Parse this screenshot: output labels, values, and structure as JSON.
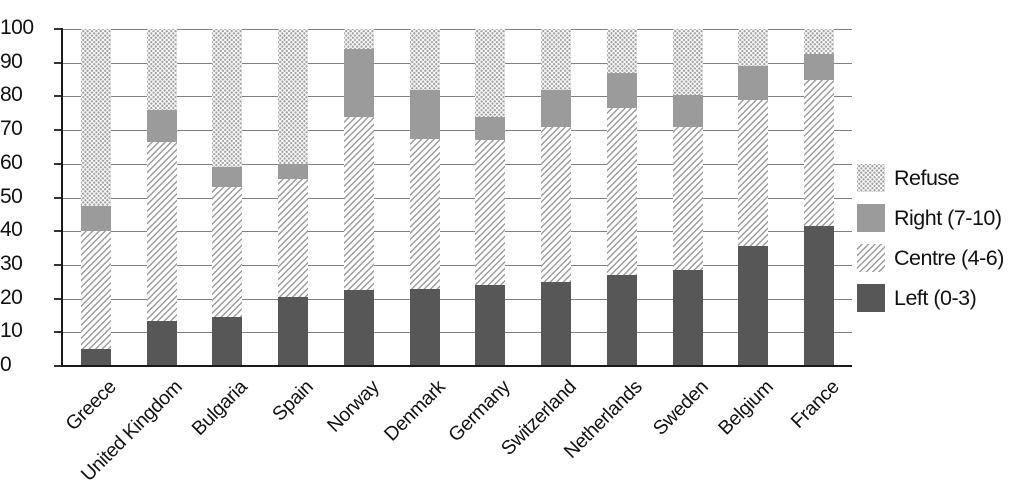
{
  "chart_data": {
    "type": "bar",
    "subtype": "stacked-100",
    "title": "",
    "xlabel": "",
    "ylabel": "",
    "ylim": [
      0,
      100
    ],
    "grid": true,
    "legend_position": "right",
    "yticks": [
      100,
      90,
      80,
      70,
      60,
      50,
      40,
      30,
      20,
      10,
      0
    ],
    "categories": [
      "Greece",
      "United Kingdom",
      "Bulgaria",
      "Spain",
      "Norway",
      "Denmark",
      "Germany",
      "Switzerland",
      "Netherlands",
      "Sweden",
      "Belgium",
      "France"
    ],
    "series": [
      {
        "name": "Left (0-3)",
        "pattern": "solid-dark",
        "values": [
          5,
          13.5,
          14.5,
          20.5,
          22.5,
          23,
          24,
          25,
          27,
          28.5,
          35.5,
          41.5
        ]
      },
      {
        "name": "Centre (4-6)",
        "pattern": "hatch",
        "values": [
          35,
          53,
          38.5,
          35,
          51.5,
          44.5,
          43,
          46,
          49.5,
          42.5,
          43.5,
          43.5
        ]
      },
      {
        "name": "Right (7-10)",
        "pattern": "solid-mid",
        "values": [
          7.5,
          9.5,
          6,
          4.5,
          20,
          14.5,
          7,
          11,
          10.5,
          9.5,
          10,
          7.5
        ]
      },
      {
        "name": "Refuse",
        "pattern": "dots",
        "values": [
          52.5,
          24,
          41,
          40,
          6,
          18,
          26,
          18,
          13,
          19.5,
          11,
          7.5
        ]
      }
    ],
    "legend": [
      {
        "label": "Refuse",
        "pattern": "dots"
      },
      {
        "label": "Right (7-10)",
        "pattern": "solid-mid"
      },
      {
        "label": "Centre (4-6)",
        "pattern": "hatch"
      },
      {
        "label": "Left (0-3)",
        "pattern": "solid-dark"
      }
    ],
    "colors": {
      "left_dark": "#575757",
      "right_mid": "#9b9b9b",
      "hatch_line": "#9c9c9c",
      "dot": "#9f9f9f",
      "gridline": "#808080",
      "axis": "#1a1a1a",
      "text": "#111111",
      "background": "#ffffff"
    }
  }
}
